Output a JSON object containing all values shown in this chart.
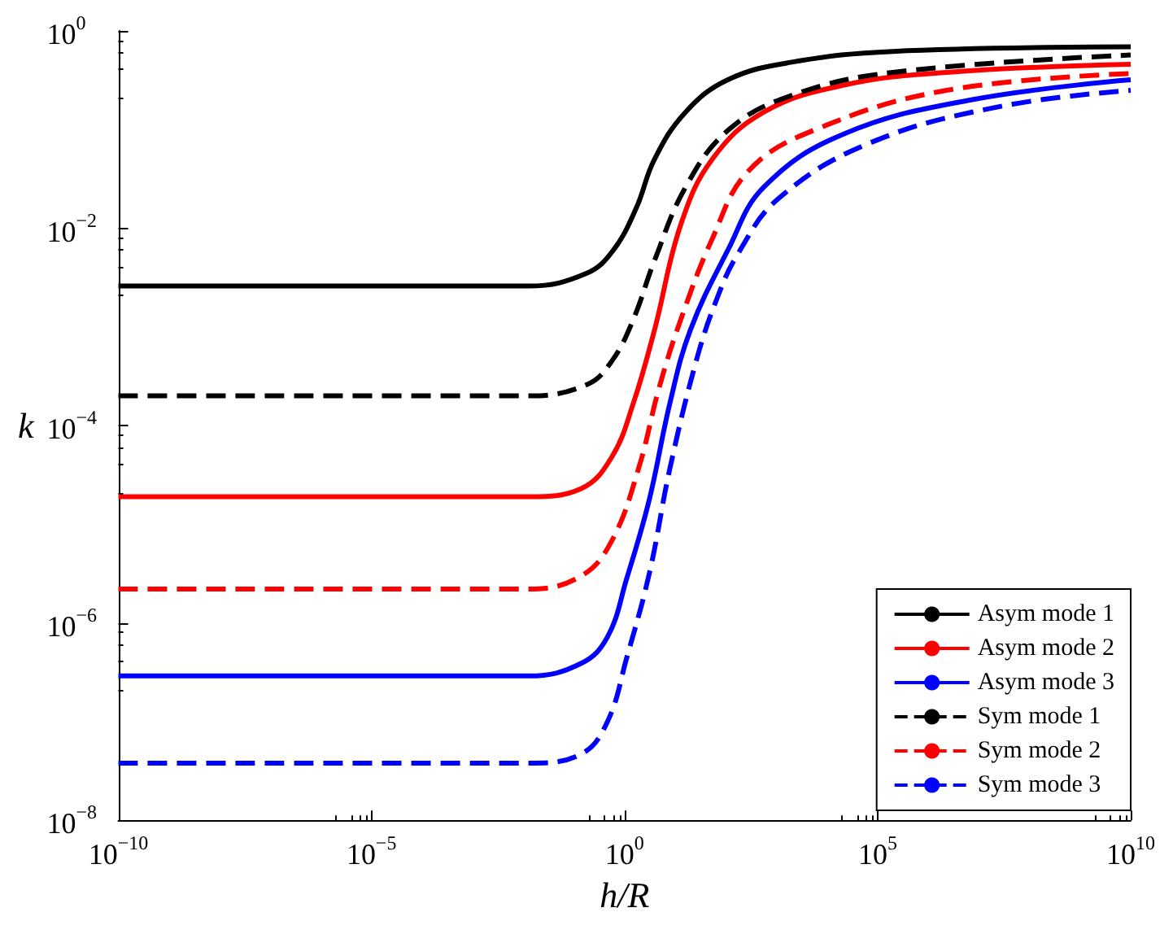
{
  "chart_data": {
    "type": "line",
    "xlabel": "h/R",
    "ylabel": "k",
    "log": "xy",
    "grid": false,
    "legend": "bottom right",
    "xlim": [
      1e-10,
      10000000000.0
    ],
    "ylim": [
      1e-08,
      1
    ],
    "xticks": [
      {
        "value": 1e-10,
        "label": "10$^{−10}$"
      },
      {
        "value": 1e-05,
        "label": "10$^{−5}$"
      },
      {
        "value": 1,
        "label": "10$^{0}$"
      },
      {
        "value": 100000.0,
        "label": "10$^{5}$"
      },
      {
        "value": 10000000000.0,
        "label": "10$^{10}$"
      }
    ],
    "yticks": [
      {
        "value": 1e-08,
        "label": "10$^{−8}$"
      },
      {
        "value": 1e-06,
        "label": "10$^{−6}$"
      },
      {
        "value": 0.0001,
        "label": "10$^{−4}$"
      },
      {
        "value": 0.01,
        "label": "10$^{−2}$"
      },
      {
        "value": 1,
        "label": "10$^{0}$"
      }
    ],
    "series": [
      {
        "name": "Asym mode 1",
        "color": "#000000",
        "line_style": "solid",
        "x": [
          1e-10,
          0.013,
          0.18,
          0.6,
          1.7,
          3.9,
          16,
          110,
          1900,
          200000.0,
          10000000000.0
        ],
        "values": [
          0.0026,
          0.0026,
          0.0035,
          0.006,
          0.016,
          0.05,
          0.15,
          0.32,
          0.48,
          0.62,
          0.69
        ]
      },
      {
        "name": "Asym mode 2",
        "color": "#ff0000",
        "line_style": "solid",
        "x": [
          1e-10,
          0.013,
          0.14,
          0.56,
          1.5,
          3.9,
          13,
          54,
          560,
          20000.0,
          2300000.0,
          10000000000.0
        ],
        "values": [
          1.9e-05,
          1.9e-05,
          2.3e-05,
          4.8e-05,
          0.00017,
          0.00093,
          0.011,
          0.05,
          0.15,
          0.28,
          0.38,
          0.46
        ]
      },
      {
        "name": "Asym mode 3",
        "color": "#0000ff",
        "line_style": "solid",
        "x": [
          1e-10,
          0.013,
          0.14,
          0.46,
          1.1,
          3.1,
          7.9,
          20,
          110,
          560,
          20000.0,
          7000000.0,
          10000000000.0
        ],
        "values": [
          2.9e-07,
          2.9e-07,
          3.9e-07,
          7.2e-07,
          2.8e-06,
          1.8e-05,
          0.00017,
          0.00093,
          0.006,
          0.026,
          0.089,
          0.2,
          0.32
        ]
      },
      {
        "name": "Sym mode 1",
        "color": "#000000",
        "line_style": "dashed",
        "x": [
          1e-10,
          0.013,
          0.18,
          0.56,
          1.5,
          3.9,
          16,
          110,
          1900,
          200000.0,
          10000000000.0
        ],
        "values": [
          0.0002,
          0.0002,
          0.00026,
          0.00045,
          0.0012,
          0.0047,
          0.026,
          0.098,
          0.22,
          0.38,
          0.57
        ]
      },
      {
        "name": "Sym mode 2",
        "color": "#ff0000",
        "line_style": "dashed",
        "x": [
          1e-10,
          0.013,
          0.14,
          0.56,
          1.9,
          4.8,
          13,
          54,
          280,
          5900,
          2300000.0,
          10000000000.0
        ],
        "values": [
          2.2e-06,
          2.2e-06,
          3e-06,
          6.8e-06,
          3.7e-05,
          0.00024,
          0.0012,
          0.0078,
          0.038,
          0.1,
          0.25,
          0.37
        ]
      },
      {
        "name": "Sym mode 3",
        "color": "#0000ff",
        "line_style": "dashed",
        "x": [
          1e-10,
          0.013,
          0.14,
          0.46,
          1.1,
          3.1,
          7.9,
          26,
          66,
          170,
          1100,
          65000.0,
          24000000.0,
          10000000000.0
        ],
        "values": [
          3.8e-08,
          3.8e-08,
          4.7e-08,
          1e-07,
          4.4e-07,
          3.2e-06,
          3.7e-05,
          0.00045,
          0.0019,
          0.0054,
          0.02,
          0.072,
          0.17,
          0.25
        ]
      }
    ]
  }
}
